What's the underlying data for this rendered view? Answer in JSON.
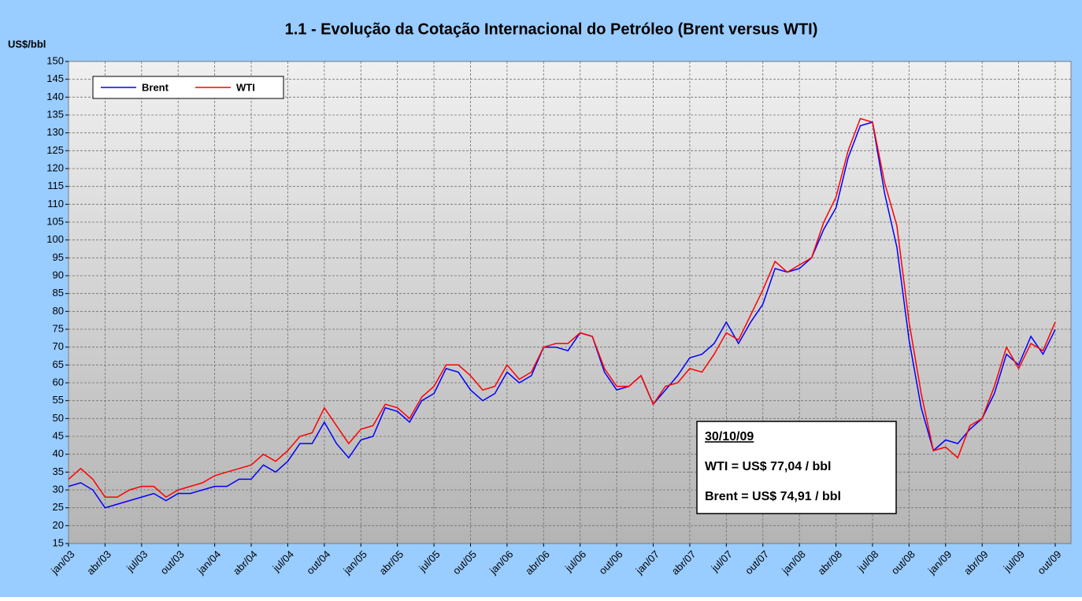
{
  "chart_data": {
    "type": "line",
    "title": "1.1 - Evolução da Cotação Internacional do Petróleo (Brent versus WTI)",
    "y_label": "US$/bbl",
    "categories": [
      "jan/03",
      null,
      null,
      "abr/03",
      null,
      null,
      "jul/03",
      null,
      null,
      "out/03",
      null,
      null,
      "jan/04",
      null,
      null,
      "abr/04",
      null,
      null,
      "jul/04",
      null,
      null,
      "out/04",
      null,
      null,
      "jan/05",
      null,
      null,
      "abr/05",
      null,
      null,
      "jul/05",
      null,
      null,
      "out/05",
      null,
      null,
      "jan/06",
      null,
      null,
      "abr/06",
      null,
      null,
      "jul/06",
      null,
      null,
      "out/06",
      null,
      null,
      "jan/07",
      null,
      null,
      "abr/07",
      null,
      null,
      "jul/07",
      null,
      null,
      "out/07",
      null,
      null,
      "jan/08",
      null,
      null,
      "abr/08",
      null,
      null,
      "jul/08",
      null,
      null,
      "out/08",
      null,
      null,
      "jan/09",
      null,
      null,
      "abr/09",
      null,
      null,
      "jul/09",
      null,
      null,
      "out/09"
    ],
    "series": [
      {
        "name": "Brent",
        "color": "#0000ff",
        "values": [
          31,
          32,
          30,
          25,
          26,
          27,
          28,
          29,
          27,
          29,
          29,
          30,
          31,
          31,
          33,
          33,
          37,
          35,
          38,
          43,
          43,
          49,
          43,
          39,
          44,
          45,
          53,
          52,
          49,
          55,
          57,
          64,
          63,
          58,
          55,
          57,
          63,
          60,
          62,
          70,
          70,
          69,
          74,
          73,
          63,
          58,
          59,
          62,
          54,
          58,
          62,
          67,
          68,
          71,
          77,
          71,
          77,
          82,
          92,
          91,
          92,
          95,
          103,
          109,
          123,
          132,
          133,
          113,
          98,
          72,
          53,
          41,
          44,
          43,
          47,
          50,
          57,
          68,
          65,
          73,
          68,
          74.91
        ]
      },
      {
        "name": "WTI",
        "color": "#ff0000",
        "values": [
          33,
          36,
          33,
          28,
          28,
          30,
          31,
          31,
          28,
          30,
          31,
          32,
          34,
          35,
          36,
          37,
          40,
          38,
          41,
          45,
          46,
          53,
          48,
          43,
          47,
          48,
          54,
          53,
          50,
          56,
          59,
          65,
          65,
          62,
          58,
          59,
          65,
          61,
          63,
          70,
          71,
          71,
          74,
          73,
          64,
          59,
          59,
          62,
          54,
          59,
          60,
          64,
          63,
          68,
          74,
          72,
          79,
          86,
          94,
          91,
          93,
          95,
          105,
          112,
          125,
          134,
          133,
          116,
          104,
          77,
          57,
          41,
          42,
          39,
          48,
          50,
          59,
          70,
          64,
          71,
          69,
          77.04
        ]
      }
    ],
    "ylim": [
      15,
      150
    ],
    "yticks": [
      15,
      20,
      25,
      30,
      35,
      40,
      45,
      50,
      55,
      60,
      65,
      70,
      75,
      80,
      85,
      90,
      95,
      100,
      105,
      110,
      115,
      120,
      125,
      130,
      135,
      140,
      145,
      150
    ],
    "grid": true,
    "legend": "top-left",
    "annotations": [
      "30/10/09",
      "WTI = US$ 77,04 / bbl",
      "Brent = US$ 74,91 / bbl"
    ]
  }
}
